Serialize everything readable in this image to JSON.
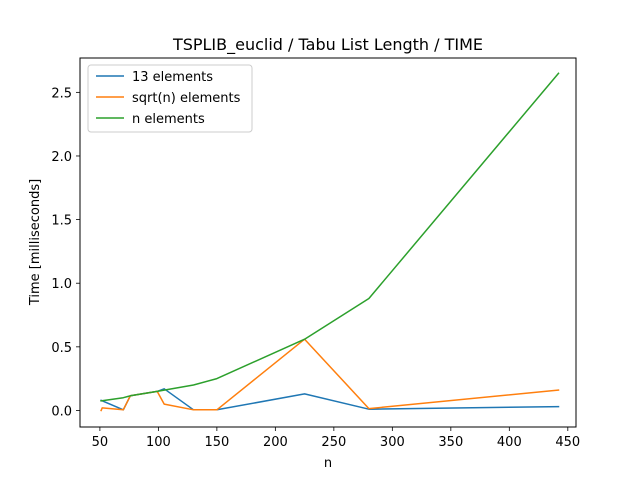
{
  "chart_data": {
    "type": "line",
    "title": "TSPLIB_euclid / Tabu List Length / TIME",
    "xlabel": "n",
    "ylabel": "Time [milliseconds]",
    "xlim": [
      33,
      457
    ],
    "ylim": [
      -0.13,
      2.77
    ],
    "xticks": [
      50,
      100,
      150,
      200,
      250,
      300,
      350,
      400,
      450
    ],
    "yticks": [
      0.0,
      0.5,
      1.0,
      1.5,
      2.0,
      2.5
    ],
    "ytick_labels": [
      "0.0",
      "0.5",
      "1.0",
      "1.5",
      "2.0",
      "2.5"
    ],
    "grid": false,
    "legend_position": "upper-left",
    "series": [
      {
        "name": "13 elements",
        "color": "#1f77b4",
        "x": [
          51,
          70,
          76,
          99,
          105,
          130,
          150,
          225,
          280,
          442
        ],
        "y": [
          0.08,
          0.005,
          0.115,
          0.15,
          0.17,
          0.005,
          0.005,
          0.13,
          0.01,
          0.03
        ]
      },
      {
        "name": "sqrt(n) elements",
        "color": "#ff7f0e",
        "x": [
          51,
          52,
          70,
          76,
          99,
          105,
          130,
          150,
          225,
          280,
          442
        ],
        "y": [
          0.0,
          0.02,
          0.005,
          0.115,
          0.15,
          0.05,
          0.005,
          0.005,
          0.56,
          0.015,
          0.16
        ]
      },
      {
        "name": "n elements",
        "color": "#2ca02c",
        "x": [
          51,
          70,
          76,
          99,
          105,
          130,
          150,
          225,
          280,
          442
        ],
        "y": [
          0.075,
          0.1,
          0.115,
          0.15,
          0.16,
          0.2,
          0.25,
          0.56,
          0.88,
          2.65
        ]
      }
    ]
  }
}
